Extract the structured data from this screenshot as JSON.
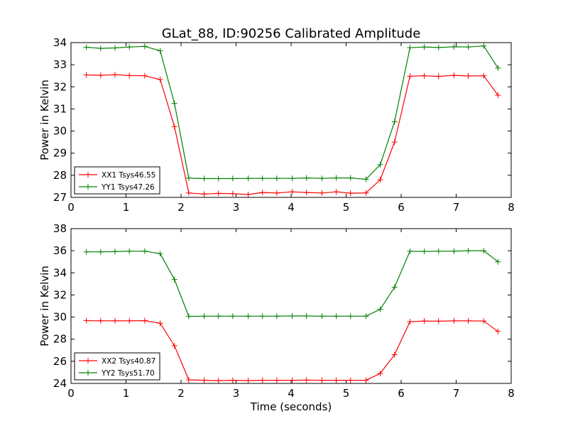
{
  "figure": {
    "title": "GLat_88, ID:90256 Calibrated Amplitude",
    "xlabel": "Time (seconds)"
  },
  "chart_data": [
    {
      "type": "line",
      "title": "GLat_88, ID:90256 Calibrated Amplitude",
      "xlabel": "",
      "ylabel": "Power in Kelvin",
      "xlim": [
        0,
        8
      ],
      "ylim": [
        27,
        34
      ],
      "xticks": [
        "0",
        "1",
        "2",
        "3",
        "4",
        "5",
        "6",
        "7",
        "8"
      ],
      "yticks": [
        "27",
        "28",
        "29",
        "30",
        "31",
        "32",
        "33",
        "34"
      ],
      "grid": false,
      "legend_position": "lower-left",
      "x": [
        0.28,
        0.54,
        0.8,
        1.06,
        1.34,
        1.62,
        1.88,
        2.14,
        2.42,
        2.68,
        2.94,
        3.22,
        3.48,
        3.74,
        4.02,
        4.28,
        4.56,
        4.82,
        5.08,
        5.36,
        5.62,
        5.88,
        6.16,
        6.42,
        6.68,
        6.96,
        7.22,
        7.5,
        7.76
      ],
      "series": [
        {
          "name": "XX1 Tsys46.55",
          "color": "#ff0000",
          "values": [
            32.54,
            32.52,
            32.55,
            32.51,
            32.5,
            32.33,
            30.2,
            27.2,
            27.15,
            27.18,
            27.17,
            27.13,
            27.22,
            27.2,
            27.25,
            27.22,
            27.2,
            27.25,
            27.19,
            27.2,
            27.8,
            29.5,
            32.48,
            32.5,
            32.47,
            32.52,
            32.49,
            32.5,
            31.62
          ]
        },
        {
          "name": "YY1 Tsys47.26",
          "color": "#008000",
          "values": [
            33.79,
            33.74,
            33.76,
            33.8,
            33.83,
            33.63,
            31.25,
            27.87,
            27.85,
            27.85,
            27.85,
            27.86,
            27.86,
            27.86,
            27.86,
            27.88,
            27.86,
            27.88,
            27.88,
            27.82,
            28.48,
            30.42,
            33.77,
            33.8,
            33.78,
            33.81,
            33.8,
            33.85,
            32.85
          ]
        }
      ]
    },
    {
      "type": "line",
      "title": "",
      "xlabel": "Time (seconds)",
      "ylabel": "Power in Kelvin",
      "xlim": [
        0,
        8
      ],
      "ylim": [
        24,
        38
      ],
      "xticks": [
        "0",
        "1",
        "2",
        "3",
        "4",
        "5",
        "6",
        "7",
        "8"
      ],
      "yticks": [
        "24",
        "26",
        "28",
        "30",
        "32",
        "34",
        "36",
        "38"
      ],
      "grid": false,
      "legend_position": "lower-left",
      "x": [
        0.28,
        0.54,
        0.8,
        1.06,
        1.34,
        1.62,
        1.88,
        2.14,
        2.42,
        2.68,
        2.94,
        3.22,
        3.48,
        3.74,
        4.02,
        4.28,
        4.56,
        4.82,
        5.08,
        5.36,
        5.62,
        5.88,
        6.16,
        6.42,
        6.68,
        6.96,
        7.22,
        7.5,
        7.76
      ],
      "series": [
        {
          "name": "XX2 Tsys40.87",
          "color": "#ff0000",
          "values": [
            29.68,
            29.66,
            29.66,
            29.66,
            29.68,
            29.44,
            27.4,
            24.32,
            24.28,
            24.25,
            24.28,
            24.26,
            24.28,
            24.28,
            24.28,
            24.3,
            24.28,
            24.28,
            24.28,
            24.28,
            24.9,
            26.6,
            29.58,
            29.64,
            29.63,
            29.66,
            29.66,
            29.64,
            28.7
          ]
        },
        {
          "name": "YY2 Tsys51.70",
          "color": "#008000",
          "values": [
            35.9,
            35.9,
            35.92,
            35.96,
            35.96,
            35.74,
            33.4,
            30.06,
            30.08,
            30.08,
            30.08,
            30.08,
            30.08,
            30.08,
            30.1,
            30.1,
            30.08,
            30.08,
            30.08,
            30.08,
            30.7,
            32.7,
            35.96,
            35.94,
            35.96,
            35.96,
            36.0,
            36.0,
            35.0
          ]
        }
      ]
    }
  ]
}
